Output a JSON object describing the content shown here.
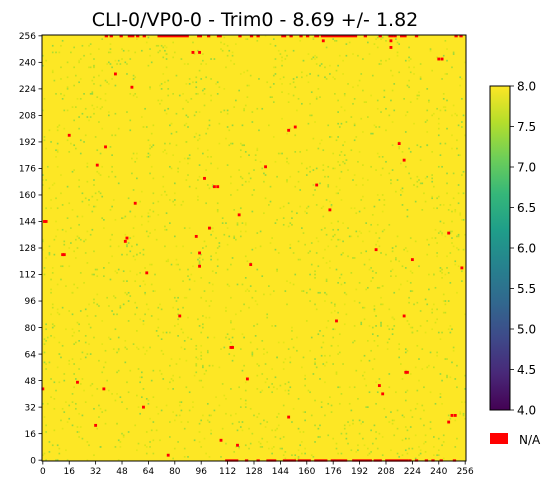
{
  "chart_data": {
    "type": "heatmap",
    "title": "CLI-0/VP0-0  -  Trim0  - 8.69 +/- 1.82",
    "xlabel": "",
    "ylabel": "",
    "xlim": [
      0,
      257
    ],
    "ylim": [
      0,
      257
    ],
    "x_ticks": [
      0,
      16,
      32,
      48,
      64,
      80,
      96,
      112,
      128,
      144,
      160,
      176,
      192,
      208,
      224,
      240,
      256
    ],
    "y_ticks": [
      0,
      16,
      32,
      48,
      64,
      80,
      96,
      112,
      128,
      144,
      160,
      176,
      192,
      208,
      224,
      240,
      256
    ],
    "dominant_value": 8.0,
    "colorbar": {
      "colormap": "viridis",
      "vmin": 4.0,
      "vmax": 8.0,
      "ticks": [
        "4.0",
        "4.5",
        "5.0",
        "5.5",
        "6.0",
        "6.5",
        "7.0",
        "7.5",
        "8.0"
      ]
    },
    "na_legend": {
      "label": "N/A",
      "color": "#ff0000"
    },
    "na_pixels": [
      [
        1,
        144
      ],
      [
        2,
        144
      ],
      [
        0,
        43
      ],
      [
        12,
        124
      ],
      [
        13,
        124
      ],
      [
        16,
        196
      ],
      [
        21,
        47
      ],
      [
        32,
        21
      ],
      [
        33,
        178
      ],
      [
        38,
        189
      ],
      [
        37,
        43
      ],
      [
        44,
        233
      ],
      [
        50,
        132
      ],
      [
        51,
        134
      ],
      [
        54,
        225
      ],
      [
        56,
        155
      ],
      [
        61,
        32
      ],
      [
        63,
        113
      ],
      [
        76,
        3
      ],
      [
        83,
        87
      ],
      [
        91,
        246
      ],
      [
        93,
        135
      ],
      [
        95,
        246
      ],
      [
        95,
        125
      ],
      [
        95,
        117
      ],
      [
        98,
        170
      ],
      [
        101,
        140
      ],
      [
        104,
        165
      ],
      [
        106,
        165
      ],
      [
        108,
        12
      ],
      [
        114,
        68
      ],
      [
        115,
        68
      ],
      [
        118,
        9
      ],
      [
        119,
        148
      ],
      [
        124,
        49
      ],
      [
        126,
        118
      ],
      [
        135,
        177
      ],
      [
        149,
        199
      ],
      [
        149,
        26
      ],
      [
        153,
        201
      ],
      [
        166,
        166
      ],
      [
        170,
        253
      ],
      [
        174,
        151
      ],
      [
        178,
        84
      ],
      [
        202,
        127
      ],
      [
        204,
        45
      ],
      [
        206,
        40
      ],
      [
        211,
        249
      ],
      [
        211,
        253
      ],
      [
        216,
        191
      ],
      [
        219,
        181
      ],
      [
        219,
        87
      ],
      [
        220,
        53
      ],
      [
        221,
        53
      ],
      [
        224,
        121
      ],
      [
        240,
        242
      ],
      [
        242,
        242
      ],
      [
        246,
        137
      ],
      [
        246,
        23
      ],
      [
        248,
        27
      ],
      [
        250,
        27
      ],
      [
        254,
        116
      ]
    ],
    "na_rows": [
      {
        "y": 256,
        "x_ranges": [
          [
            38,
            39
          ],
          [
            41,
            42
          ],
          [
            47,
            48
          ],
          [
            52,
            55
          ],
          [
            57,
            58
          ],
          [
            61,
            62
          ],
          [
            70,
            88
          ],
          [
            94,
            96
          ],
          [
            100,
            101
          ],
          [
            106,
            108
          ],
          [
            119,
            120
          ],
          [
            126,
            127
          ],
          [
            130,
            131
          ],
          [
            145,
            147
          ],
          [
            150,
            151
          ],
          [
            156,
            157
          ],
          [
            160,
            161
          ],
          [
            165,
            167
          ],
          [
            169,
            190
          ],
          [
            195,
            196
          ],
          [
            204,
            205
          ],
          [
            210,
            212
          ],
          [
            213,
            214
          ],
          [
            217,
            220
          ],
          [
            226,
            227
          ],
          [
            250,
            251
          ],
          [
            253,
            254
          ]
        ]
      },
      {
        "y": 0,
        "x_ranges": [
          [
            111,
            118
          ],
          [
            123,
            124
          ],
          [
            130,
            131
          ],
          [
            136,
            141
          ],
          [
            146,
            153
          ],
          [
            155,
            162
          ],
          [
            165,
            172
          ],
          [
            175,
            184
          ],
          [
            188,
            199
          ],
          [
            201,
            205
          ],
          [
            208,
            221
          ],
          [
            222,
            223
          ],
          [
            226,
            227
          ],
          [
            232,
            233
          ],
          [
            236,
            237
          ],
          [
            241,
            242
          ],
          [
            249,
            250
          ]
        ]
      }
    ],
    "green_speckle_density": 0.035
  }
}
